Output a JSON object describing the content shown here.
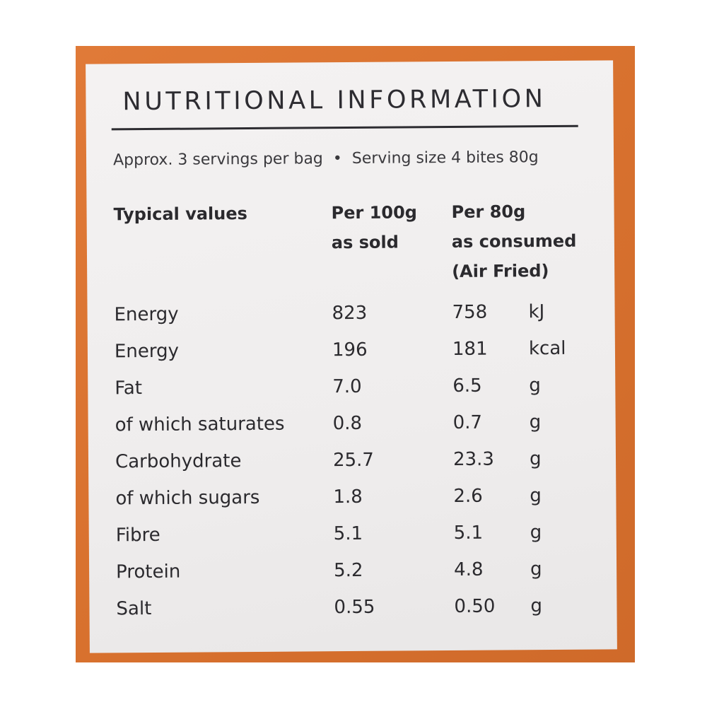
{
  "title": "NUTRITIONAL INFORMATION",
  "servings": {
    "approx": "Approx. 3 servings per bag",
    "separator": "•",
    "size": "Serving size 4 bites 80g"
  },
  "headers": {
    "typical": "Typical values",
    "per100_line1": "Per 100g",
    "per100_line2": "as sold",
    "per80_line1": "Per 80g",
    "per80_line2": "as consumed",
    "per80_line3": "(Air Fried)"
  },
  "rows": [
    {
      "name": "Energy",
      "per100": "823",
      "per80": "758",
      "unit": "kJ"
    },
    {
      "name": "Energy",
      "per100": "196",
      "per80": "181",
      "unit": "kcal"
    },
    {
      "name": "Fat",
      "per100": "7.0",
      "per80": "6.5",
      "unit": "g"
    },
    {
      "name": "of which saturates",
      "per100": "0.8",
      "per80": "0.7",
      "unit": "g"
    },
    {
      "name": "Carbohydrate",
      "per100": "25.7",
      "per80": "23.3",
      "unit": "g"
    },
    {
      "name": "of which sugars",
      "per100": "1.8",
      "per80": "2.6",
      "unit": "g"
    },
    {
      "name": "Fibre",
      "per100": "5.1",
      "per80": "5.1",
      "unit": "g"
    },
    {
      "name": "Protein",
      "per100": "5.2",
      "per80": "4.8",
      "unit": "g"
    },
    {
      "name": "Salt",
      "per100": "0.55",
      "per80": "0.50",
      "unit": "g"
    }
  ]
}
